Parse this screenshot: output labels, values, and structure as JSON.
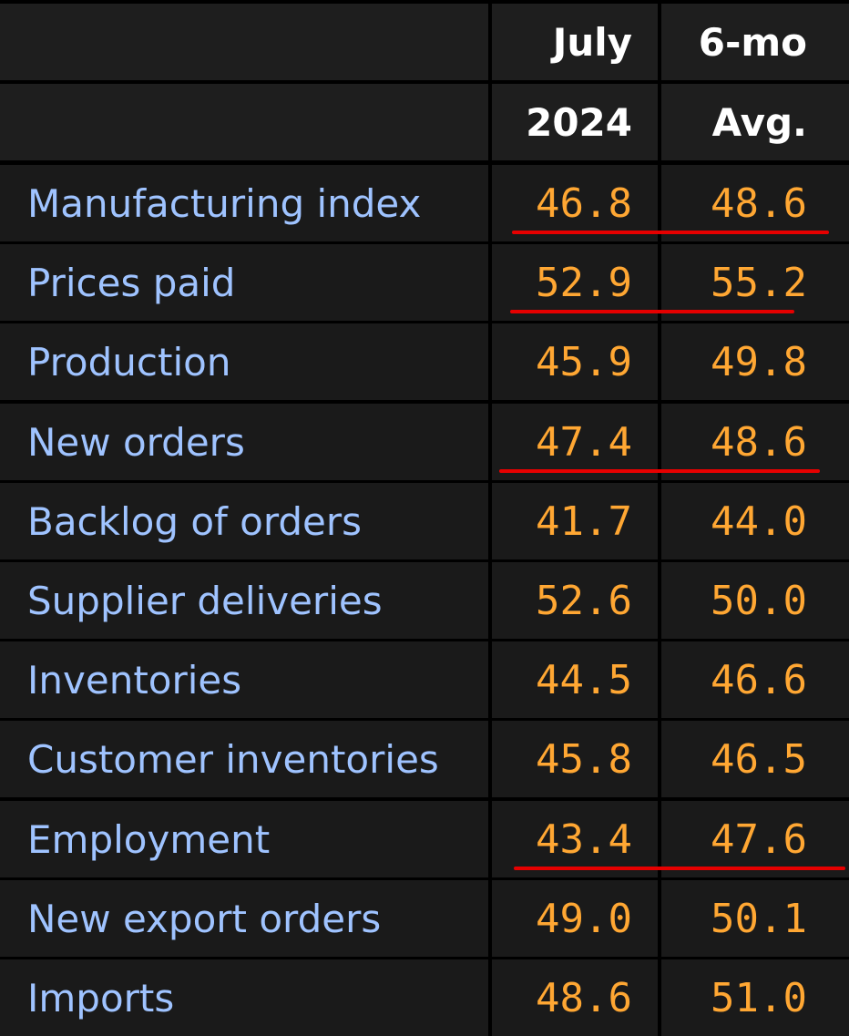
{
  "header": {
    "col1_line1": "July",
    "col1_line2": "2024",
    "col2_line1": "6-mo",
    "col2_line2": "Avg."
  },
  "rows": [
    {
      "label": "Manufacturing index",
      "july_2024": "46.8",
      "six_mo_avg": "48.6",
      "underlined": true
    },
    {
      "label": "Prices paid",
      "july_2024": "52.9",
      "six_mo_avg": "55.2",
      "underlined": true
    },
    {
      "label": "Production",
      "july_2024": "45.9",
      "six_mo_avg": "49.8",
      "underlined": false
    },
    {
      "label": "New orders",
      "july_2024": "47.4",
      "six_mo_avg": "48.6",
      "underlined": true
    },
    {
      "label": "Backlog of orders",
      "july_2024": "41.7",
      "six_mo_avg": "44.0",
      "underlined": false
    },
    {
      "label": "Supplier deliveries",
      "july_2024": "52.6",
      "six_mo_avg": "50.0",
      "underlined": false
    },
    {
      "label": "Inventories",
      "july_2024": "44.5",
      "six_mo_avg": "46.6",
      "underlined": false
    },
    {
      "label": "Customer inventories",
      "july_2024": "45.8",
      "six_mo_avg": "46.5",
      "underlined": false
    },
    {
      "label": "Employment",
      "july_2024": "43.4",
      "six_mo_avg": "47.6",
      "underlined": true
    },
    {
      "label": "New export orders",
      "july_2024": "49.0",
      "six_mo_avg": "50.1",
      "underlined": false
    },
    {
      "label": "Imports",
      "july_2024": "48.6",
      "six_mo_avg": "51.0",
      "underlined": false
    }
  ],
  "colors": {
    "label": "#9fc3ff",
    "value": "#ffa733",
    "header": "#ffffff",
    "underline": "#e60000",
    "cell_bg": "#1a1a1a",
    "grid": "#000000"
  }
}
